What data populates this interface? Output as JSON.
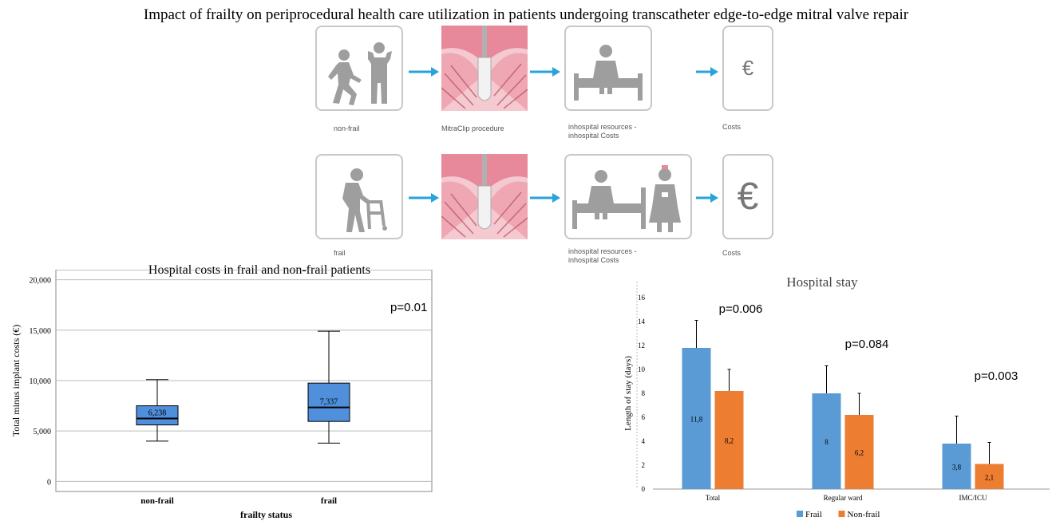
{
  "title": "Impact of frailty on periprocedural health care utilization in patients undergoing transcatheter edge-to-edge mitral valve repair",
  "flow": {
    "row1": {
      "labels": [
        "non-frail",
        "MitraClip procedure",
        "inhospital resources -\ninhospital Costs",
        "Costs"
      ],
      "cost_symbol": "€"
    },
    "row2": {
      "labels": [
        "frail",
        "",
        "inhospital resources -\ninhospital Costs",
        "Costs"
      ],
      "cost_symbol": "€"
    },
    "colors": {
      "arrow": "#29a3dc",
      "icon": "#9e9e9e",
      "tissue": "#e7899b"
    }
  },
  "chart_data": [
    {
      "type": "box",
      "title": "Hospital costs in frail and non-frail patients",
      "xlabel": "frailty status",
      "ylabel": "Total minus implant costs (€)",
      "ylim": [
        -1000,
        21000
      ],
      "yticks": [
        0,
        5000,
        10000,
        15000,
        20000
      ],
      "ytick_labels": [
        "0",
        "5,000",
        "10,000",
        "15,000",
        "20,000"
      ],
      "categories": [
        "non-frail",
        "frail"
      ],
      "boxes": [
        {
          "whisker_low": 4000,
          "q1": 5600,
          "median": 6238,
          "q3": 7500,
          "whisker_high": 10100,
          "label": "6,238"
        },
        {
          "whisker_low": 3800,
          "q1": 5950,
          "median": 7337,
          "q3": 9750,
          "whisker_high": 14900,
          "label": "7,337"
        }
      ],
      "annotation": "p=0.01",
      "box_color": "#4f8fdb",
      "grid": true
    },
    {
      "type": "bar",
      "title": "Hospital stay",
      "ylabel": "Length of stay (days)",
      "ylim": [
        0,
        16
      ],
      "yticks": [
        0,
        2,
        4,
        6,
        8,
        10,
        12,
        14,
        16
      ],
      "categories": [
        "Total",
        "Regular ward",
        "IMC/ICU"
      ],
      "series": [
        {
          "name": "Frail",
          "values": [
            11.8,
            8,
            3.8
          ],
          "errors": [
            2.3,
            2.3,
            2.3
          ],
          "labels": [
            "11,8",
            "8",
            "3,8"
          ],
          "color": "#5b9bd5"
        },
        {
          "name": "Non-frail",
          "values": [
            8.2,
            6.2,
            2.1
          ],
          "errors": [
            1.8,
            1.8,
            1.8
          ],
          "labels": [
            "8,2",
            "6,2",
            "2,1"
          ],
          "color": "#ed7d31"
        }
      ],
      "pvalues": [
        "p=0.006",
        "p=0.084",
        "p=0.003"
      ],
      "legend": "bottom",
      "grid": false
    }
  ]
}
